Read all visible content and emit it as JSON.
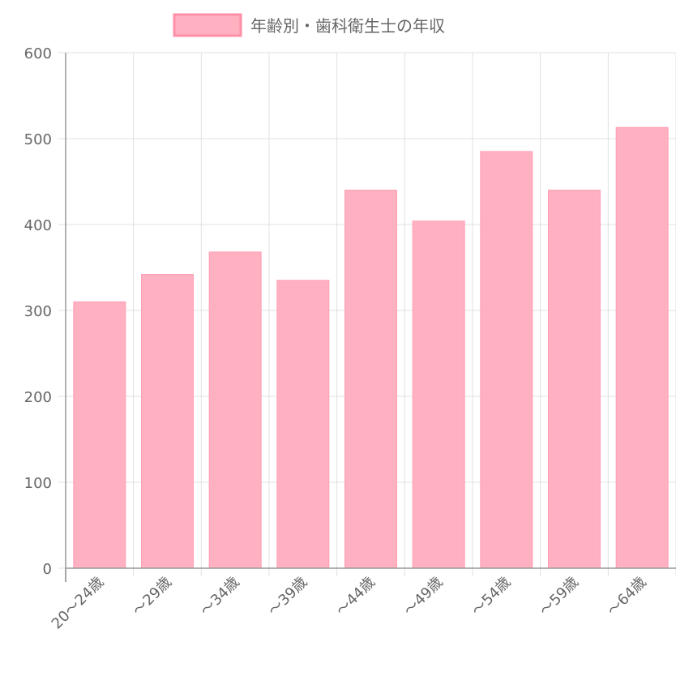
{
  "chart_data": {
    "type": "bar",
    "categories": [
      "20〜24歳",
      "〜29歳",
      "〜34歳",
      "〜39歳",
      "〜44歳",
      "〜49歳",
      "〜54歳",
      "〜59歳",
      "〜64歳"
    ],
    "series": [
      {
        "name": "年齢別・歯科衛生士の年収",
        "values": [
          310,
          342,
          368,
          335,
          440,
          404,
          485,
          440,
          513
        ]
      }
    ],
    "ylim": [
      0,
      600
    ],
    "yticks": [
      "0",
      "100",
      "200",
      "300",
      "400",
      "500",
      "600"
    ],
    "grid": true,
    "legend": "top-center",
    "colors": {
      "bar_fill": "#ffb0c1",
      "bar_stroke": "#ff9fb5",
      "grid": "#e0e0e0",
      "axis": "#999999",
      "text": "#666666"
    }
  }
}
